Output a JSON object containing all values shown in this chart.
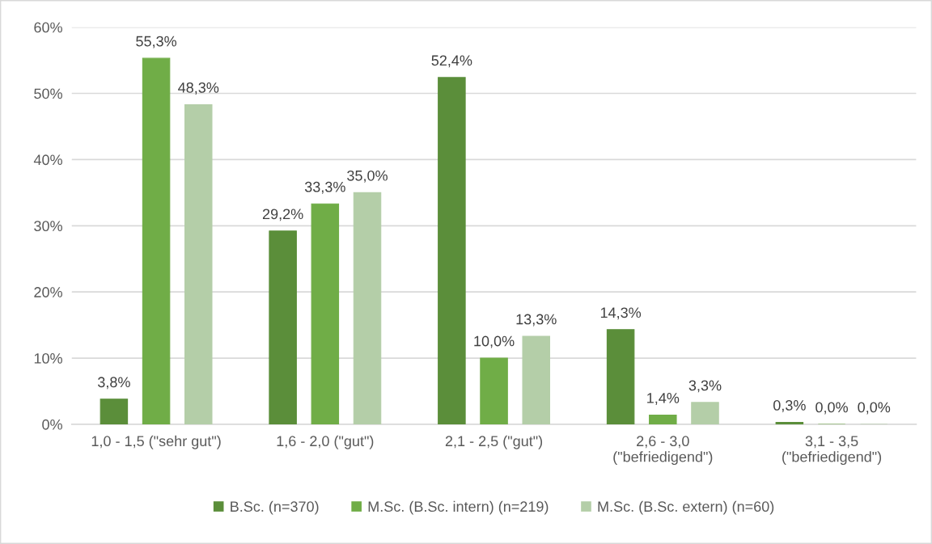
{
  "chart_data": {
    "type": "bar",
    "categories": [
      "1,0 - 1,5 (\"sehr gut\")",
      "1,6 - 2,0 (\"gut\")",
      "2,1 - 2,5 (\"gut\")",
      "2,6 - 3,0\n(\"befriedigend\")",
      "3,1 - 3,5\n(\"befriedigend\")"
    ],
    "series": [
      {
        "name": "B.Sc. (n=370)",
        "color": "#5b8e3a",
        "values": [
          3.8,
          29.2,
          52.4,
          14.3,
          0.3
        ],
        "value_labels": [
          "3,8%",
          "29,2%",
          "52,4%",
          "14,3%",
          "0,3%"
        ]
      },
      {
        "name": "M.Sc. (B.Sc. intern) (n=219)",
        "color": "#70ad47",
        "values": [
          55.3,
          33.3,
          10.0,
          1.4,
          0.0
        ],
        "value_labels": [
          "55,3%",
          "33,3%",
          "10,0%",
          "1,4%",
          "0,0%"
        ]
      },
      {
        "name": "M.Sc. (B.Sc. extern) (n=60)",
        "color": "#b4cea8",
        "values": [
          48.3,
          35.0,
          13.3,
          3.3,
          0.0
        ],
        "value_labels": [
          "48,3%",
          "35,0%",
          "13,3%",
          "3,3%",
          "0,0%"
        ]
      }
    ],
    "ylim": [
      0,
      60
    ],
    "yticks": [
      {
        "value": 0,
        "label": "0%"
      },
      {
        "value": 10,
        "label": "10%"
      },
      {
        "value": 20,
        "label": "20%"
      },
      {
        "value": 30,
        "label": "30%"
      },
      {
        "value": 40,
        "label": "40%"
      },
      {
        "value": 50,
        "label": "50%"
      },
      {
        "value": 60,
        "label": "60%"
      }
    ],
    "grid": "y",
    "legend": "bottom"
  }
}
